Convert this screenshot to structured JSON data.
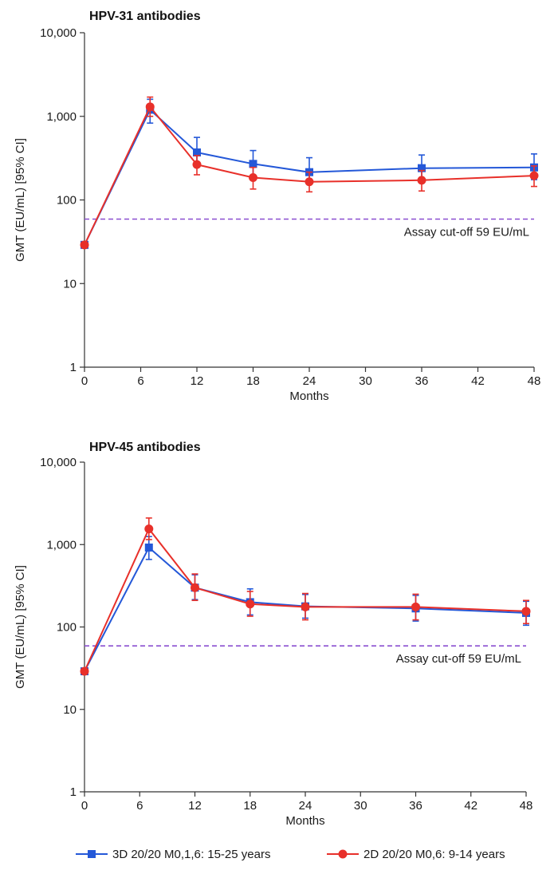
{
  "chart_data": [
    {
      "type": "line",
      "title": "HPV-31 antibodies",
      "xlabel": "Months",
      "ylabel": "GMT (EU/mL)  [95% CI]",
      "yscale": "log",
      "ylim": [
        1,
        10000
      ],
      "xlim": [
        0,
        48
      ],
      "xticks": [
        0,
        6,
        12,
        18,
        24,
        30,
        36,
        42,
        48
      ],
      "yticks": [
        1,
        10,
        100,
        1000,
        10000
      ],
      "ytick_labels": [
        "1",
        "10",
        "100",
        "1,000",
        "10,000"
      ],
      "cutoff": {
        "value": 59,
        "label": "Assay cut-off 59 EU/mL"
      },
      "series": [
        {
          "name": "3D 20/20 M0,1,6: 15-25 years",
          "color": "#2458d8",
          "marker": "square",
          "x": [
            0,
            7,
            12,
            18,
            24,
            36,
            48
          ],
          "values": [
            29,
            1200,
            370,
            270,
            215,
            240,
            245
          ],
          "ci_low": [
            27,
            830,
            270,
            195,
            155,
            175,
            175
          ],
          "ci_high": [
            31,
            1600,
            560,
            390,
            320,
            345,
            355
          ]
        },
        {
          "name": "2D 20/20 M0,6: 9-14 years",
          "color": "#e8302a",
          "marker": "circle",
          "x": [
            0,
            7,
            12,
            18,
            24,
            36,
            48
          ],
          "values": [
            29,
            1300,
            265,
            185,
            165,
            172,
            195
          ],
          "ci_low": [
            27,
            1000,
            200,
            135,
            125,
            128,
            145
          ],
          "ci_high": [
            31,
            1700,
            340,
            245,
            215,
            225,
            255
          ]
        }
      ]
    },
    {
      "type": "line",
      "title": "HPV-45 antibodies",
      "xlabel": "Months",
      "ylabel": "GMT (EU/mL)  [95% CI]",
      "yscale": "log",
      "ylim": [
        1,
        10000
      ],
      "xlim": [
        0,
        48
      ],
      "xticks": [
        0,
        6,
        12,
        18,
        24,
        30,
        36,
        42,
        48
      ],
      "yticks": [
        1,
        10,
        100,
        1000,
        10000
      ],
      "ytick_labels": [
        "1",
        "10",
        "100",
        "1,000",
        "10,000"
      ],
      "cutoff": {
        "value": 59,
        "label": "Assay cut-off 59 EU/mL"
      },
      "series": [
        {
          "name": "3D 20/20 M0,1,6: 15-25 years",
          "color": "#2458d8",
          "marker": "square",
          "x": [
            0,
            7,
            12,
            18,
            24,
            36,
            48
          ],
          "values": [
            29,
            920,
            300,
            200,
            178,
            168,
            148
          ],
          "ci_low": [
            27,
            660,
            215,
            140,
            128,
            118,
            105
          ],
          "ci_high": [
            31,
            1250,
            430,
            290,
            248,
            242,
            205
          ]
        },
        {
          "name": "2D 20/20 M0,6: 9-14 years",
          "color": "#e8302a",
          "marker": "circle",
          "x": [
            0,
            7,
            12,
            18,
            24,
            36,
            48
          ],
          "values": [
            29,
            1550,
            300,
            190,
            175,
            175,
            155
          ],
          "ci_low": [
            27,
            1150,
            210,
            135,
            122,
            122,
            110
          ],
          "ci_high": [
            31,
            2100,
            440,
            270,
            255,
            250,
            210
          ]
        }
      ]
    }
  ],
  "legend": {
    "items": [
      {
        "label": "3D 20/20 M0,1,6: 15-25 years",
        "color": "#2458d8",
        "marker": "square"
      },
      {
        "label": "2D 20/20 M0,6: 9-14 years",
        "color": "#e8302a",
        "marker": "circle"
      }
    ]
  },
  "colors": {
    "cutoff_line": "#8a4fd0",
    "axis": "#333333"
  }
}
